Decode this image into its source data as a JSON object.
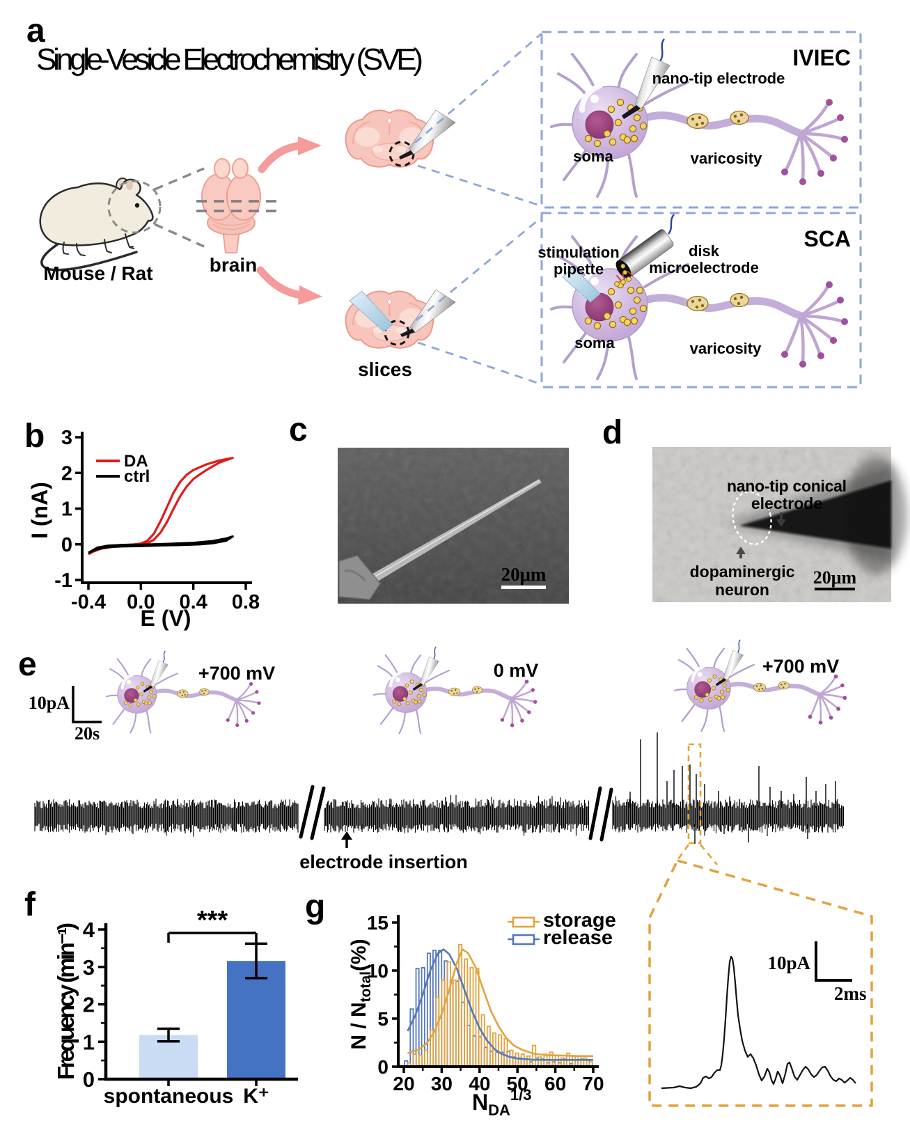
{
  "figure": {
    "title": "Single-Vesicle Electrochemistry (SVE)",
    "panel_labels": {
      "a": "a",
      "b": "b",
      "c": "c",
      "d": "d",
      "e": "e",
      "f": "f",
      "g": "g"
    }
  },
  "panel_a": {
    "mouse_label": "Mouse / Rat",
    "brain_label": "brain",
    "slices_label": "slices",
    "iviec_title": "IVIEC",
    "iviec_electrode": "nano-tip electrode",
    "iviec_soma": "soma",
    "iviec_varicosity": "varicosity",
    "sca_title": "SCA",
    "sca_pipette1": "stimulation",
    "sca_pipette2": "pipette",
    "sca_electrode1": "disk",
    "sca_electrode2": "microelectrode",
    "sca_soma": "soma",
    "sca_varicosity": "varicosity"
  },
  "panel_c": {
    "scale_bar": "20μm"
  },
  "panel_d": {
    "electrode1": "nano-tip conical",
    "electrode2": "electrode",
    "neuron1": "dopaminergic",
    "neuron2": "neuron",
    "scale_bar": "20μm"
  },
  "panel_e": {
    "scale_current": "10pA",
    "scale_time": "20s",
    "bias1": "+700 mV",
    "bias2": "0 mV",
    "bias3": "+700 mV",
    "annotation": "electrode insertion"
  },
  "inset": {
    "scale_current": "10pA",
    "scale_time": "2ms"
  },
  "chart_data": [
    {
      "panel": "b",
      "type": "line",
      "xlabel": "E (V)",
      "ylabel": "I (nA)",
      "xlim": [
        -0.4,
        0.8
      ],
      "ylim": [
        -1,
        3
      ],
      "xticks": [
        -0.4,
        0.0,
        0.4,
        0.8
      ],
      "yticks": [
        -1,
        0,
        1,
        2,
        3
      ],
      "legend_position": "top-left",
      "series": [
        {
          "name": "DA",
          "color": "#e01b1b",
          "points": [
            [
              -0.4,
              -0.28
            ],
            [
              -0.33,
              -0.1
            ],
            [
              -0.25,
              -0.04
            ],
            [
              -0.15,
              -0.02
            ],
            [
              -0.05,
              0.0
            ],
            [
              0.0,
              0.02
            ],
            [
              0.05,
              0.1
            ],
            [
              0.1,
              0.3
            ],
            [
              0.15,
              0.65
            ],
            [
              0.2,
              1.05
            ],
            [
              0.25,
              1.45
            ],
            [
              0.3,
              1.75
            ],
            [
              0.35,
              1.95
            ],
            [
              0.4,
              2.08
            ],
            [
              0.5,
              2.24
            ],
            [
              0.6,
              2.35
            ],
            [
              0.7,
              2.42
            ],
            [
              0.65,
              2.36
            ],
            [
              0.6,
              2.29
            ],
            [
              0.55,
              2.19
            ],
            [
              0.5,
              2.08
            ],
            [
              0.45,
              1.96
            ],
            [
              0.4,
              1.83
            ],
            [
              0.35,
              1.62
            ],
            [
              0.3,
              1.35
            ],
            [
              0.25,
              1.0
            ],
            [
              0.2,
              0.63
            ],
            [
              0.15,
              0.33
            ],
            [
              0.1,
              0.13
            ],
            [
              0.05,
              0.03
            ],
            [
              0.0,
              -0.01
            ],
            [
              -0.1,
              -0.03
            ],
            [
              -0.2,
              -0.06
            ],
            [
              -0.3,
              -0.12
            ],
            [
              -0.36,
              -0.2
            ],
            [
              -0.4,
              -0.28
            ]
          ]
        },
        {
          "name": "ctrl",
          "color": "#000000",
          "points": [
            [
              -0.4,
              -0.24
            ],
            [
              -0.33,
              -0.09
            ],
            [
              -0.25,
              -0.04
            ],
            [
              -0.15,
              -0.02
            ],
            [
              0.0,
              -0.01
            ],
            [
              0.2,
              0.01
            ],
            [
              0.4,
              0.04
            ],
            [
              0.55,
              0.09
            ],
            [
              0.65,
              0.16
            ],
            [
              0.7,
              0.22
            ],
            [
              0.65,
              0.1
            ],
            [
              0.55,
              0.03
            ],
            [
              0.45,
              0.0
            ],
            [
              0.3,
              -0.02
            ],
            [
              0.15,
              -0.03
            ],
            [
              0.0,
              -0.05
            ],
            [
              -0.15,
              -0.06
            ],
            [
              -0.25,
              -0.08
            ],
            [
              -0.33,
              -0.13
            ],
            [
              -0.4,
              -0.24
            ]
          ]
        }
      ]
    },
    {
      "panel": "f",
      "type": "bar",
      "ylabel": "Frequency (min⁻¹)",
      "categories": [
        "spontaneous",
        "K⁺"
      ],
      "values": [
        1.18,
        3.16
      ],
      "errors": [
        0.17,
        0.46
      ],
      "bar_colors": [
        "#c9dcf4",
        "#4573c4"
      ],
      "ylim": [
        0,
        4
      ],
      "yticks": [
        0,
        1,
        2,
        3,
        4
      ],
      "significance": "***"
    },
    {
      "panel": "g",
      "type": "histogram",
      "xlabel": "N_DA^(1/3)",
      "ylabel": "N / N_total (%)",
      "label_parts": {
        "y_main": "N / N",
        "y_sub": "total",
        "y_unit": "(%)",
        "x_main": "N",
        "x_sub": "DA",
        "x_sup": "1/3"
      },
      "xlim": [
        20,
        70
      ],
      "ylim": [
        0,
        15
      ],
      "xticks": [
        20,
        30,
        40,
        50,
        60,
        70
      ],
      "yticks": [
        0,
        5,
        10,
        15
      ],
      "legend_position": "top-right",
      "bin_centers": [
        21,
        22.5,
        24,
        25.5,
        27,
        28.5,
        30,
        31.5,
        33,
        34.5,
        36,
        37.5,
        39,
        40.5,
        42,
        43.5,
        45,
        46.5,
        48,
        49.5,
        51,
        52.5,
        54,
        55.5,
        57,
        58.5,
        60,
        61.5,
        63,
        64.5,
        66,
        67.5,
        69
      ],
      "series": [
        {
          "name": "storage",
          "color": "#e2a33c",
          "values": [
            0.4,
            1.3,
            1.2,
            1.7,
            3.8,
            7.2,
            9.0,
            10.9,
            9.0,
            12.7,
            11.2,
            10.3,
            10.2,
            5.4,
            4.2,
            3.5,
            3.3,
            2.9,
            1.7,
            1.4,
            1.3,
            1.1,
            2.2,
            1.0,
            1.3,
            1.5,
            1.2,
            0.9,
            1.4,
            1.1,
            1.1,
            0.9,
            0.5
          ],
          "fit": [
            [
              21,
              1.4
            ],
            [
              24,
              1.8
            ],
            [
              26,
              2.4
            ],
            [
              28,
              3.6
            ],
            [
              30,
              5.5
            ],
            [
              32,
              8.0
            ],
            [
              34,
              10.8
            ],
            [
              35.5,
              12.2
            ],
            [
              37,
              11.8
            ],
            [
              39,
              10.3
            ],
            [
              41,
              8.0
            ],
            [
              43,
              5.8
            ],
            [
              45,
              4.2
            ],
            [
              47,
              3.0
            ],
            [
              49,
              2.2
            ],
            [
              51,
              1.8
            ],
            [
              53,
              1.5
            ],
            [
              55,
              1.3
            ],
            [
              58,
              1.2
            ],
            [
              62,
              1.15
            ],
            [
              66,
              1.1
            ],
            [
              70,
              1.1
            ]
          ]
        },
        {
          "name": "release",
          "color": "#5478bd",
          "values": [
            0.6,
            6.0,
            10.2,
            10.3,
            11.8,
            12.1,
            12.1,
            11.0,
            9.0,
            8.9,
            6.7,
            4.3,
            3.2,
            3.1,
            2.0,
            1.6,
            1.5,
            1.5,
            1.6,
            1.0,
            0.9,
            0.8,
            0.5,
            0.9,
            0.8,
            0.4,
            0.5,
            0.4,
            0.8,
            0.3,
            0.7,
            0.8,
            0.7
          ],
          "fit": [
            [
              21,
              3.7
            ],
            [
              23,
              5.3
            ],
            [
              25,
              7.5
            ],
            [
              27,
              10.0
            ],
            [
              29,
              11.8
            ],
            [
              30.5,
              12.2
            ],
            [
              32,
              11.7
            ],
            [
              34,
              10.2
            ],
            [
              36,
              8.0
            ],
            [
              38,
              5.8
            ],
            [
              40,
              4.0
            ],
            [
              42,
              2.7
            ],
            [
              44,
              1.8
            ],
            [
              46,
              1.3
            ],
            [
              48,
              1.0
            ],
            [
              50,
              0.85
            ],
            [
              54,
              0.72
            ],
            [
              58,
              0.7
            ],
            [
              63,
              0.7
            ],
            [
              70,
              0.7
            ]
          ]
        }
      ]
    }
  ]
}
